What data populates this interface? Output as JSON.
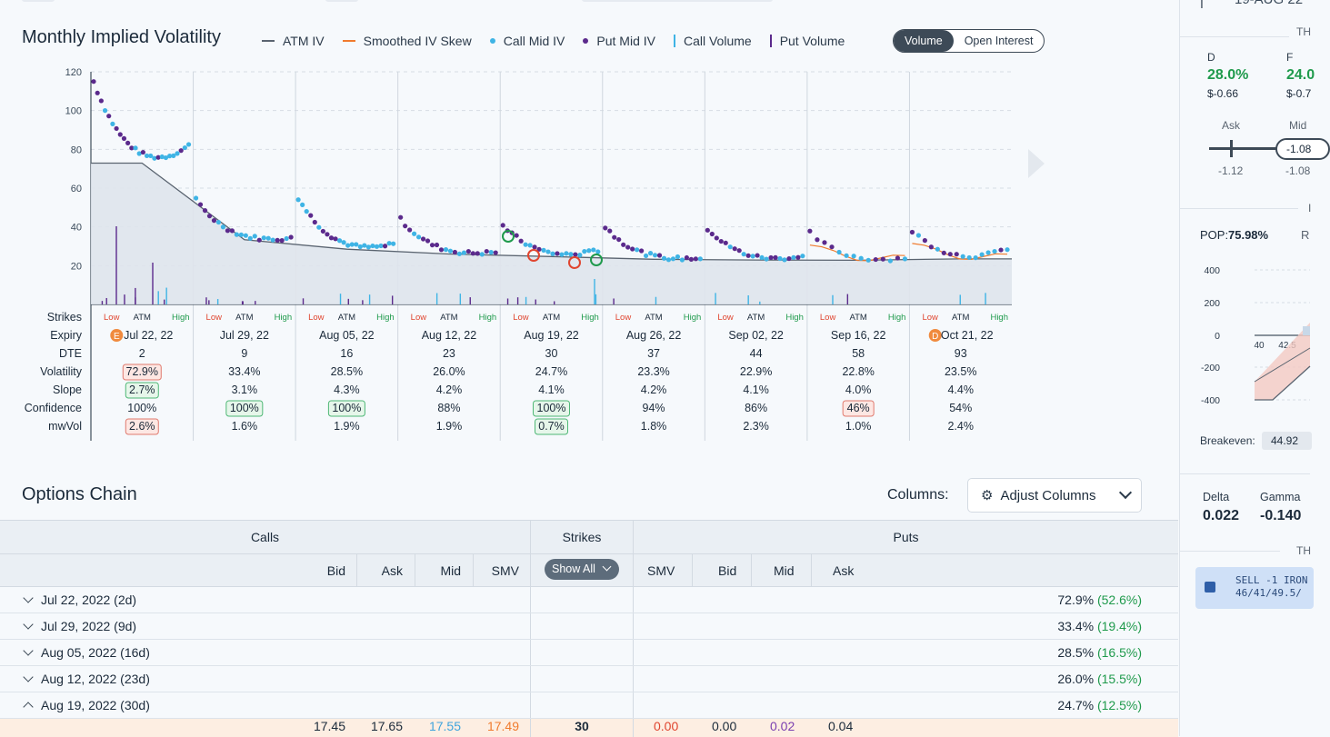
{
  "chart": {
    "title": "Monthly Implied Volatility",
    "legend": [
      {
        "label": "ATM IV",
        "kind": "line",
        "color": "#5a6470"
      },
      {
        "label": "Smoothed IV Skew",
        "kind": "line",
        "color": "#f07b2e"
      },
      {
        "label": "Call Mid IV",
        "kind": "dot",
        "color": "#3fb4e5"
      },
      {
        "label": "Put Mid IV",
        "kind": "dot",
        "color": "#5b2a8c"
      },
      {
        "label": "Call Volume",
        "kind": "bar",
        "color": "#3fb4e5"
      },
      {
        "label": "Put Volume",
        "kind": "bar",
        "color": "#5b2a8c"
      }
    ],
    "toggle": {
      "volume": "Volume",
      "open_interest": "Open Interest",
      "selected": "Volume"
    }
  },
  "chart_data": {
    "type": "scatter",
    "ylim": [
      0,
      120
    ],
    "yticks": [
      "120",
      "100",
      "80",
      "60",
      "40",
      "20"
    ],
    "expiries": [
      {
        "strikes_low": "Low",
        "strikes_atm": "ATM",
        "strikes_high": "High",
        "expiry": "Jul 22, 22",
        "badge": "E",
        "dte": "2",
        "volatility": "72.9%",
        "slope": "2.7%",
        "confidence": "100%",
        "mwvol": "2.6%",
        "atm": 72.9
      },
      {
        "strikes_low": "Low",
        "strikes_atm": "ATM",
        "strikes_high": "High",
        "expiry": "Jul 29, 22",
        "badge": "",
        "dte": "9",
        "volatility": "33.4%",
        "slope": "3.1%",
        "confidence": "100%",
        "mwvol": "1.6%",
        "atm": 33.4
      },
      {
        "strikes_low": "Low",
        "strikes_atm": "ATM",
        "strikes_high": "High",
        "expiry": "Aug 05, 22",
        "badge": "",
        "dte": "16",
        "volatility": "28.5%",
        "slope": "4.3%",
        "confidence": "100%",
        "mwvol": "1.9%",
        "atm": 28.5
      },
      {
        "strikes_low": "Low",
        "strikes_atm": "ATM",
        "strikes_high": "High",
        "expiry": "Aug 12, 22",
        "badge": "",
        "dte": "23",
        "volatility": "26.0%",
        "slope": "4.2%",
        "confidence": "88%",
        "mwvol": "1.9%",
        "atm": 26.0
      },
      {
        "strikes_low": "Low",
        "strikes_atm": "ATM",
        "strikes_high": "High",
        "expiry": "Aug 19, 22",
        "badge": "",
        "dte": "30",
        "volatility": "24.7%",
        "slope": "4.1%",
        "confidence": "100%",
        "mwvol": "0.7%",
        "atm": 24.7
      },
      {
        "strikes_low": "Low",
        "strikes_atm": "ATM",
        "strikes_high": "High",
        "expiry": "Aug 26, 22",
        "badge": "",
        "dte": "37",
        "volatility": "23.3%",
        "slope": "4.2%",
        "confidence": "94%",
        "mwvol": "1.8%",
        "atm": 23.3
      },
      {
        "strikes_low": "Low",
        "strikes_atm": "ATM",
        "strikes_high": "High",
        "expiry": "Sep 02, 22",
        "badge": "",
        "dte": "44",
        "volatility": "22.9%",
        "slope": "4.1%",
        "confidence": "86%",
        "mwvol": "2.3%",
        "atm": 22.9
      },
      {
        "strikes_low": "Low",
        "strikes_atm": "ATM",
        "strikes_high": "High",
        "expiry": "Sep 16, 22",
        "badge": "",
        "dte": "58",
        "volatility": "22.8%",
        "slope": "4.0%",
        "confidence": "46%",
        "mwvol": "1.0%",
        "atm": 22.8
      },
      {
        "strikes_low": "Low",
        "strikes_atm": "ATM",
        "strikes_high": "High",
        "expiry": "Oct 21, 22",
        "badge": "D",
        "dte": "93",
        "volatility": "23.5%",
        "slope": "4.4%",
        "confidence": "54%",
        "mwvol": "2.4%",
        "atm": 23.5
      }
    ],
    "row_labels": [
      "Strikes",
      "Expiry",
      "DTE",
      "Volatility",
      "Slope",
      "Confidence",
      "mwVol"
    ],
    "highlights": {
      "volatility": [
        0
      ],
      "slope": [
        0
      ],
      "confidence_good": [
        1,
        2,
        4
      ],
      "confidence_bad": [
        7
      ],
      "mwvol_bad": [
        0
      ],
      "mwvol_good": [
        4
      ]
    }
  },
  "options_chain": {
    "title": "Options Chain",
    "columns_label": "Columns:",
    "adjust_label": "Adjust Columns",
    "calls_label": "Calls",
    "strikes_label": "Strikes",
    "puts_label": "Puts",
    "show_all": "Show All",
    "call_cols": [
      "Bid",
      "Ask",
      "Mid",
      "SMV"
    ],
    "put_cols": [
      "SMV",
      "Bid",
      "Mid",
      "Ask"
    ],
    "expirations": [
      {
        "label": "Jul 22, 2022 (2d)",
        "iv": "72.9%",
        "ivchg": "(52.6%)",
        "open": false
      },
      {
        "label": "Jul 29, 2022 (9d)",
        "iv": "33.4%",
        "ivchg": "(19.4%)",
        "open": false
      },
      {
        "label": "Aug 05, 2022 (16d)",
        "iv": "28.5%",
        "ivchg": "(16.5%)",
        "open": false
      },
      {
        "label": "Aug 12, 2022 (23d)",
        "iv": "26.0%",
        "ivchg": "(15.5%)",
        "open": false
      },
      {
        "label": "Aug 19, 2022 (30d)",
        "iv": "24.7%",
        "ivchg": "(12.5%)",
        "open": true
      }
    ],
    "first_row": {
      "call_bid": "17.45",
      "call_ask": "17.65",
      "call_mid": "17.55",
      "call_smv": "17.49",
      "strike": "30",
      "put_smv": "0.00",
      "put_bid": "0.00",
      "put_mid": "0.02",
      "put_ask": "0.04"
    }
  },
  "right_panel": {
    "top_text": "19-AUG 22",
    "th1": "TH",
    "d_label": "D",
    "d_val": "28.0%",
    "d_sub": "$-0.66",
    "f_label": "F",
    "f_val": "24.0",
    "f_sub": "$-0.7",
    "ask_label": "Ask",
    "mid_label": "Mid",
    "mid_pill": "-1.08",
    "ask_val": "-1.12",
    "mid_val": "-1.08",
    "pop_label": "POP:",
    "pop_val": "75.98%",
    "r_label": "R",
    "y_ticks": [
      "400",
      "200",
      "0",
      "-200",
      "-400"
    ],
    "x_ticks": [
      "40",
      "42.5"
    ],
    "breakeven_label": "Breakeven:",
    "breakeven_val": "44.92",
    "delta_label": "Delta",
    "delta_val": "0.022",
    "gamma_label": "Gamma",
    "gamma_val": "-0.140",
    "th2": "TH",
    "order_line1": "SELL -1 IRON",
    "order_line2": "46/41/49.5/"
  }
}
